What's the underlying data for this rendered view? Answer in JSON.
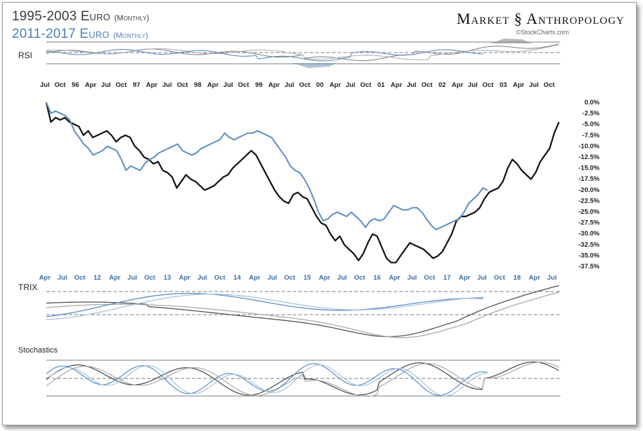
{
  "header": {
    "title_series1": "1995-2003 Euro",
    "title_series1_note": "(Monthly)",
    "title_series2": "2011-2017 Euro",
    "title_series2_note": "(Monthly)",
    "brand_left": "Market",
    "brand_right": "Anthropology",
    "brand_source": "©StockCharts.com"
  },
  "colors": {
    "black_series": "#111111",
    "blue_series": "#5b8fc4",
    "grey_signal": "#9a9a9a",
    "light_blue_signal": "#a9c4e2",
    "grid": "#6f7f8f"
  },
  "chart_data": {
    "type": "line",
    "top_axis_labels": [
      "Jul",
      "Oct",
      "96",
      "Apr",
      "Jul",
      "Oct",
      "97",
      "Apr",
      "Jul",
      "Oct",
      "98",
      "Apr",
      "Jul",
      "Oct",
      "99",
      "Apr",
      "Jul",
      "Oct",
      "00",
      "Apr",
      "Jul",
      "Oct",
      "01",
      "Apr",
      "Jul",
      "Oct",
      "02",
      "Apr",
      "Jul",
      "Oct",
      "03",
      "Apr",
      "Jul",
      "Oct"
    ],
    "bottom_axis_labels": [
      "Apr",
      "Jul",
      "Oct",
      "12",
      "Apr",
      "Jul",
      "Oct",
      "13",
      "Apr",
      "Jul",
      "Oct",
      "14",
      "Apr",
      "Jul",
      "Oct",
      "15",
      "Apr",
      "Jul",
      "Oct",
      "16",
      "Apr",
      "Jul",
      "Oct",
      "17",
      "Apr",
      "Jul",
      "Oct",
      "18",
      "Apr",
      "Jul"
    ],
    "y_axis": {
      "ticks": [
        "0.0%",
        "-2.5%",
        "-5.0%",
        "-7.5%",
        "-10.0%",
        "-12.5%",
        "-15.0%",
        "-17.5%",
        "-20.0%",
        "-22.5%",
        "-25.0%",
        "-27.5%",
        "-30.0%",
        "-32.5%",
        "-35.0%",
        "-37.5%"
      ],
      "ylim": [
        -37.5,
        0
      ],
      "position": "right"
    },
    "series": [
      {
        "name": "1995-2003 Euro",
        "values": [
          0,
          -4.5,
          -3.5,
          -4,
          -3.5,
          -4.5,
          -5,
          -5.5,
          -7.5,
          -6.5,
          -8,
          -7.5,
          -7,
          -6.5,
          -7.5,
          -9,
          -8,
          -7.5,
          -8,
          -10,
          -11,
          -12.5,
          -13,
          -14,
          -13.5,
          -15.5,
          -16,
          -17,
          -19.5,
          -18,
          -16.5,
          -17.5,
          -18,
          -19,
          -20,
          -19.5,
          -19,
          -18,
          -17,
          -16.5,
          -15,
          -14,
          -13,
          -12,
          -11,
          -12,
          -14,
          -16,
          -18,
          -20,
          -21.5,
          -22.5,
          -23,
          -21,
          -20.5,
          -21.5,
          -22,
          -24,
          -26,
          -27.5,
          -28,
          -30,
          -31.5,
          -30.5,
          -32.5,
          -33.5,
          -34.5,
          -36,
          -34.5,
          -32,
          -30,
          -30.5,
          -33,
          -35.5,
          -36.5,
          -36.5,
          -35,
          -33.5,
          -32,
          -32.5,
          -33,
          -33.5,
          -34.5,
          -35.5,
          -35,
          -34,
          -32,
          -30,
          -27,
          -26,
          -26,
          -25.5,
          -25,
          -24,
          -22,
          -20.5,
          -20,
          -19.5,
          -18,
          -15,
          -13,
          -14,
          -15.5,
          -16.5,
          -17.5,
          -16,
          -13.5,
          -12,
          -10.5,
          -7,
          -4.5
        ]
      },
      {
        "name": "2011-2017 Euro",
        "values": [
          0,
          -2.5,
          -2,
          -2.5,
          -3,
          -4,
          -6.5,
          -8,
          -9.5,
          -10.5,
          -12,
          -11.5,
          -11,
          -10,
          -10.5,
          -11,
          -13,
          -15.5,
          -14.5,
          -15,
          -15.5,
          -14,
          -13,
          -12.5,
          -11.5,
          -11,
          -10.5,
          -10,
          -9.5,
          -11,
          -11.5,
          -12,
          -11.5,
          -10.5,
          -10,
          -9.5,
          -9,
          -8.5,
          -7,
          -8,
          -8.5,
          -8,
          -7.5,
          -7,
          -7,
          -6.5,
          -7,
          -7.5,
          -8,
          -9.5,
          -11,
          -12.5,
          -14.5,
          -15.5,
          -16,
          -17.5,
          -19.5,
          -22,
          -25,
          -27,
          -26.5,
          -25.5,
          -25,
          -25.5,
          -26,
          -25,
          -26,
          -27,
          -28.5,
          -27,
          -26.5,
          -27,
          -26.5,
          -25,
          -23.5,
          -24,
          -24.5,
          -24.5,
          -24,
          -24,
          -25,
          -26.5,
          -28,
          -29,
          -28.5,
          -28,
          -27.5,
          -27,
          -26.5,
          -25,
          -23,
          -22,
          -21,
          -19.5,
          -20
        ]
      }
    ],
    "panels": [
      "RSI",
      "TRIX",
      "Stochastics"
    ],
    "grid": false,
    "legend": "top-left"
  }
}
